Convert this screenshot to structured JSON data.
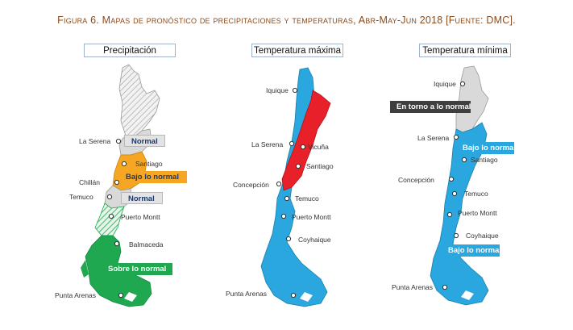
{
  "caption": "Figura 6. Mapas de pronóstico de precipitaciones y temperaturas, Abr-May-Jun 2018 [Fuente: DMC].",
  "panels": [
    {
      "title": "Precipitación",
      "cities": [
        "La Serena",
        "Santiago",
        "Chillán",
        "Temuco",
        "Puerto Montt",
        "Balmaceda",
        "Punta Arenas"
      ],
      "labels": [
        "Normal",
        "Bajo lo normal",
        "Normal",
        "Sobre lo normal"
      ]
    },
    {
      "title": "Temperatura máxima",
      "cities": [
        "Iquique",
        "La Serena",
        "Vicuña",
        "Santiago",
        "Concepción",
        "Temuco",
        "Puerto Montt",
        "Coyhaique",
        "Punta Arenas"
      ]
    },
    {
      "title": "Temperatura mínima",
      "cities": [
        "Iquique",
        "La Serena",
        "Santiago",
        "Concepción",
        "Temuco",
        "Puerto Montt",
        "Coyhaique",
        "Punta Arenas"
      ],
      "labels": [
        "En torno a lo normal",
        "Bajo lo normal",
        "Bajo lo normal"
      ]
    }
  ],
  "colors": {
    "normal_gray": "#d9d9d9",
    "below_orange": "#f5a623",
    "above_green": "#1fa84f",
    "tmax_blue": "#29a7de",
    "tmax_red": "#e8202a",
    "tmin_blue": "#29a7de"
  }
}
